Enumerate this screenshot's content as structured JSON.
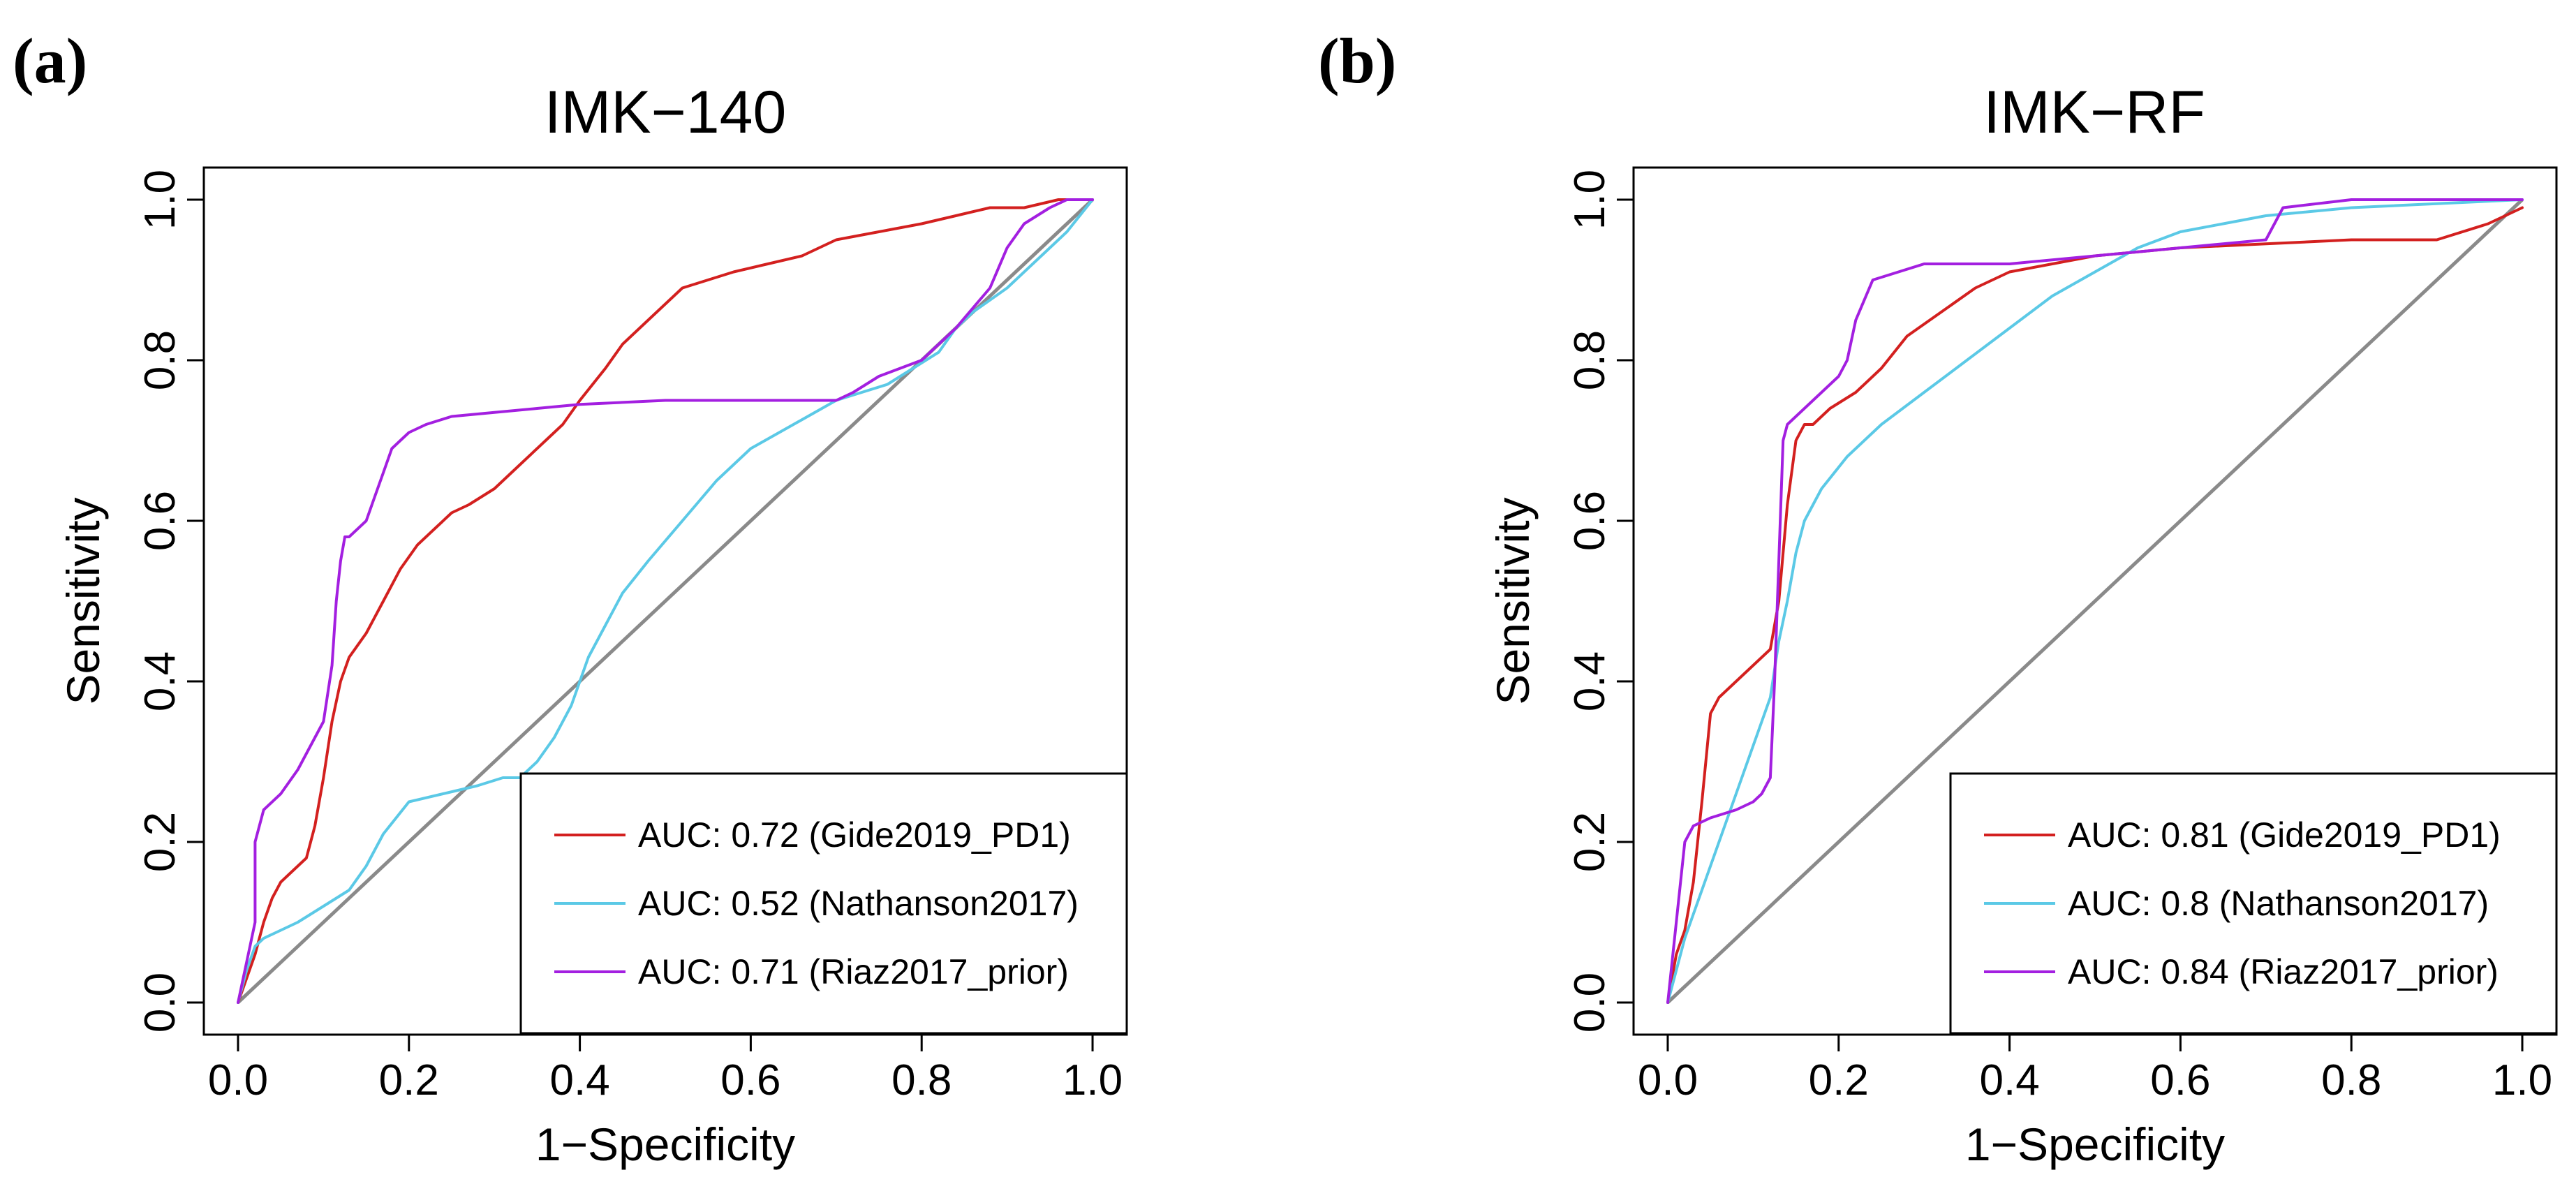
{
  "figure": {
    "panels": [
      "(a)",
      "(b)"
    ]
  },
  "colors": {
    "red": "#d3201f",
    "cyan": "#5bc9e6",
    "purple": "#a31fe0",
    "diagonal": "#8a8a8a",
    "axis": "#000000"
  },
  "chart_data": [
    {
      "panel": "(a)",
      "type": "line",
      "title": "IMK−140",
      "xlabel": "1−Specificity",
      "ylabel": "Sensitivity",
      "xlim": [
        0,
        1
      ],
      "ylim": [
        0,
        1
      ],
      "xticks": [
        "0.0",
        "0.2",
        "0.4",
        "0.6",
        "0.8",
        "1.0"
      ],
      "yticks": [
        "0.0",
        "0.2",
        "0.4",
        "0.6",
        "0.8",
        "1.0"
      ],
      "grid": false,
      "legend_position": "bottom-right",
      "reference_line": "diagonal",
      "series": [
        {
          "name": "AUC: 0.72 (Gide2019_PD1)",
          "color": "red",
          "x": [
            0,
            0.01,
            0.02,
            0.03,
            0.04,
            0.05,
            0.06,
            0.08,
            0.09,
            0.1,
            0.11,
            0.12,
            0.13,
            0.15,
            0.17,
            0.19,
            0.21,
            0.23,
            0.25,
            0.27,
            0.3,
            0.33,
            0.36,
            0.38,
            0.4,
            0.43,
            0.45,
            0.48,
            0.5,
            0.52,
            0.55,
            0.58,
            0.62,
            0.66,
            0.7,
            0.75,
            0.8,
            0.84,
            0.88,
            0.92,
            0.96,
            1.0
          ],
          "y": [
            0,
            0.03,
            0.06,
            0.1,
            0.13,
            0.15,
            0.16,
            0.18,
            0.22,
            0.28,
            0.35,
            0.4,
            0.43,
            0.46,
            0.5,
            0.54,
            0.57,
            0.59,
            0.61,
            0.62,
            0.64,
            0.67,
            0.7,
            0.72,
            0.75,
            0.79,
            0.82,
            0.85,
            0.87,
            0.89,
            0.9,
            0.91,
            0.92,
            0.93,
            0.95,
            0.96,
            0.97,
            0.98,
            0.99,
            0.99,
            1.0,
            1.0
          ]
        },
        {
          "name": "AUC: 0.52 (Nathanson2017)",
          "color": "cyan",
          "x": [
            0,
            0.01,
            0.02,
            0.03,
            0.05,
            0.07,
            0.1,
            0.13,
            0.15,
            0.17,
            0.2,
            0.24,
            0.28,
            0.31,
            0.33,
            0.35,
            0.37,
            0.39,
            0.41,
            0.43,
            0.45,
            0.48,
            0.52,
            0.56,
            0.6,
            0.65,
            0.7,
            0.73,
            0.76,
            0.79,
            0.82,
            0.84,
            0.86,
            0.9,
            0.94,
            0.97,
            1.0
          ],
          "y": [
            0,
            0.04,
            0.07,
            0.08,
            0.09,
            0.1,
            0.12,
            0.14,
            0.17,
            0.21,
            0.25,
            0.26,
            0.27,
            0.28,
            0.28,
            0.3,
            0.33,
            0.37,
            0.43,
            0.47,
            0.51,
            0.55,
            0.6,
            0.65,
            0.69,
            0.72,
            0.75,
            0.76,
            0.77,
            0.79,
            0.81,
            0.84,
            0.86,
            0.89,
            0.93,
            0.96,
            1.0
          ]
        },
        {
          "name": "AUC: 0.71 (Riaz2017_prior)",
          "color": "purple",
          "x": [
            0,
            0.01,
            0.02,
            0.02,
            0.03,
            0.05,
            0.07,
            0.09,
            0.1,
            0.11,
            0.115,
            0.12,
            0.125,
            0.13,
            0.15,
            0.16,
            0.17,
            0.18,
            0.19,
            0.2,
            0.22,
            0.25,
            0.3,
            0.35,
            0.4,
            0.5,
            0.6,
            0.7,
            0.72,
            0.75,
            0.8,
            0.84,
            0.88,
            0.9,
            0.92,
            0.95,
            0.97,
            1.0
          ],
          "y": [
            0,
            0.05,
            0.1,
            0.2,
            0.24,
            0.26,
            0.29,
            0.33,
            0.35,
            0.42,
            0.5,
            0.55,
            0.58,
            0.58,
            0.6,
            0.63,
            0.66,
            0.69,
            0.7,
            0.71,
            0.72,
            0.73,
            0.735,
            0.74,
            0.745,
            0.75,
            0.75,
            0.75,
            0.76,
            0.78,
            0.8,
            0.84,
            0.89,
            0.94,
            0.97,
            0.99,
            1.0,
            1.0
          ]
        }
      ]
    },
    {
      "panel": "(b)",
      "type": "line",
      "title": "IMK−RF",
      "xlabel": "1−Specificity",
      "ylabel": "Sensitivity",
      "xlim": [
        0,
        1
      ],
      "ylim": [
        0,
        1
      ],
      "xticks": [
        "0.0",
        "0.2",
        "0.4",
        "0.6",
        "0.8",
        "1.0"
      ],
      "yticks": [
        "0.0",
        "0.2",
        "0.4",
        "0.6",
        "0.8",
        "1.0"
      ],
      "grid": false,
      "legend_position": "bottom-right",
      "reference_line": "diagonal",
      "series": [
        {
          "name": "AUC: 0.81 (Gide2019_PD1)",
          "color": "red",
          "x": [
            0,
            0.01,
            0.02,
            0.03,
            0.04,
            0.05,
            0.06,
            0.08,
            0.1,
            0.12,
            0.13,
            0.14,
            0.15,
            0.16,
            0.17,
            0.19,
            0.22,
            0.25,
            0.28,
            0.32,
            0.36,
            0.4,
            0.45,
            0.5,
            0.6,
            0.7,
            0.8,
            0.9,
            0.96,
            1.0
          ],
          "y": [
            0,
            0.06,
            0.09,
            0.15,
            0.25,
            0.36,
            0.38,
            0.4,
            0.42,
            0.44,
            0.5,
            0.62,
            0.7,
            0.72,
            0.72,
            0.74,
            0.76,
            0.79,
            0.83,
            0.86,
            0.89,
            0.91,
            0.92,
            0.93,
            0.94,
            0.945,
            0.95,
            0.95,
            0.97,
            0.99
          ]
        },
        {
          "name": "AUC: 0.8 (Nathanson2017)",
          "color": "cyan",
          "x": [
            0,
            0.01,
            0.02,
            0.04,
            0.06,
            0.08,
            0.1,
            0.12,
            0.13,
            0.14,
            0.15,
            0.16,
            0.18,
            0.21,
            0.25,
            0.3,
            0.35,
            0.4,
            0.45,
            0.5,
            0.55,
            0.6,
            0.7,
            0.8,
            1.0
          ],
          "y": [
            0,
            0.04,
            0.08,
            0.14,
            0.2,
            0.26,
            0.32,
            0.38,
            0.45,
            0.5,
            0.56,
            0.6,
            0.64,
            0.68,
            0.72,
            0.76,
            0.8,
            0.84,
            0.88,
            0.91,
            0.94,
            0.96,
            0.98,
            0.99,
            1.0
          ]
        },
        {
          "name": "AUC: 0.84 (Riaz2017_prior)",
          "color": "purple",
          "x": [
            0,
            0.005,
            0.01,
            0.015,
            0.02,
            0.03,
            0.05,
            0.08,
            0.1,
            0.11,
            0.12,
            0.125,
            0.13,
            0.135,
            0.14,
            0.16,
            0.18,
            0.2,
            0.21,
            0.22,
            0.24,
            0.27,
            0.3,
            0.4,
            0.5,
            0.6,
            0.7,
            0.72,
            0.8,
            1.0
          ],
          "y": [
            0,
            0.05,
            0.1,
            0.15,
            0.2,
            0.22,
            0.23,
            0.24,
            0.25,
            0.26,
            0.28,
            0.4,
            0.55,
            0.7,
            0.72,
            0.74,
            0.76,
            0.78,
            0.8,
            0.85,
            0.9,
            0.91,
            0.92,
            0.92,
            0.93,
            0.94,
            0.95,
            0.99,
            1.0,
            1.0
          ]
        }
      ]
    }
  ]
}
